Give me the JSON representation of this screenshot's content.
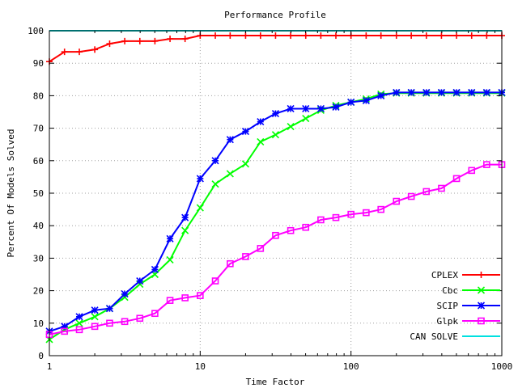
{
  "chart_data": {
    "type": "line",
    "title": "Performance Profile",
    "xlabel": "Time Factor",
    "ylabel": "Percent Of Models Solved",
    "x_scale": "log",
    "xlim": [
      1,
      1000
    ],
    "ylim": [
      0,
      100
    ],
    "grid": true,
    "legend_position": "bottom-right",
    "x_ticks": [
      {
        "value": 1,
        "label": "1"
      },
      {
        "value": 10,
        "label": "10"
      },
      {
        "value": 100,
        "label": "100"
      },
      {
        "value": 1000,
        "label": "1000"
      }
    ],
    "y_ticks": [
      0,
      10,
      20,
      30,
      40,
      50,
      60,
      70,
      80,
      90,
      100
    ],
    "series": [
      {
        "name": "CPLEX",
        "color": "#ff0000",
        "marker": "plus",
        "x": [
          1,
          1.26,
          1.58,
          2,
          2.51,
          3.16,
          3.98,
          5.01,
          6.31,
          7.94,
          10,
          12.6,
          15.8,
          20,
          25.1,
          31.6,
          39.8,
          50.1,
          63.1,
          79.4,
          100,
          126,
          158,
          200,
          251,
          316,
          398,
          501,
          631,
          794,
          1000
        ],
        "values": [
          90.5,
          93.5,
          93.5,
          94.2,
          96,
          96.8,
          96.8,
          96.8,
          97.5,
          97.5,
          98.5,
          98.5,
          98.5,
          98.5,
          98.5,
          98.5,
          98.5,
          98.5,
          98.5,
          98.5,
          98.5,
          98.5,
          98.5,
          98.5,
          98.5,
          98.5,
          98.5,
          98.5,
          98.5,
          98.5,
          98.5
        ]
      },
      {
        "name": "Cbc",
        "color": "#00ff00",
        "marker": "cross",
        "x": [
          1,
          1.26,
          1.58,
          2,
          2.51,
          3.16,
          3.98,
          5.01,
          6.31,
          7.94,
          10,
          12.6,
          15.8,
          20,
          25.1,
          31.6,
          39.8,
          50.1,
          63.1,
          79.4,
          100,
          126,
          158,
          200,
          251,
          316,
          398,
          501,
          631,
          794,
          1000
        ],
        "values": [
          5,
          8,
          10,
          12,
          14.5,
          18,
          22,
          25,
          29.5,
          38.5,
          45.5,
          52.8,
          56,
          59,
          65.8,
          68,
          70.5,
          73,
          75.5,
          77,
          78,
          79,
          80.5,
          80.8,
          80.8,
          80.8,
          80.8,
          80.8,
          80.8,
          80.8,
          80.8
        ]
      },
      {
        "name": "SCIP",
        "color": "#0000ff",
        "marker": "star",
        "x": [
          1,
          1.26,
          1.58,
          2,
          2.51,
          3.16,
          3.98,
          5.01,
          6.31,
          7.94,
          10,
          12.6,
          15.8,
          20,
          25.1,
          31.6,
          39.8,
          50.1,
          63.1,
          79.4,
          100,
          126,
          158,
          200,
          251,
          316,
          398,
          501,
          631,
          794,
          1000
        ],
        "values": [
          7.5,
          9,
          12,
          14,
          14.5,
          19,
          23,
          26.5,
          36,
          42.5,
          54.5,
          60,
          66.5,
          69,
          72,
          74.5,
          76,
          76,
          76,
          76.5,
          78,
          78.5,
          80,
          81,
          81,
          81,
          81,
          81,
          81,
          81,
          81
        ]
      },
      {
        "name": "Glpk",
        "color": "#ff00ff",
        "marker": "square",
        "x": [
          1,
          1.26,
          1.58,
          2,
          2.51,
          3.16,
          3.98,
          5.01,
          6.31,
          7.94,
          10,
          12.6,
          15.8,
          20,
          25.1,
          31.6,
          39.8,
          50.1,
          63.1,
          79.4,
          100,
          126,
          158,
          200,
          251,
          316,
          398,
          501,
          631,
          794,
          1000
        ],
        "values": [
          6.5,
          7.5,
          8,
          9,
          10,
          10.5,
          11.5,
          13,
          17,
          17.8,
          18.5,
          23,
          28.3,
          30.5,
          33,
          37,
          38.5,
          39.5,
          41.8,
          42.5,
          43.5,
          44,
          45,
          47.5,
          49,
          50.5,
          51.5,
          54.5,
          57,
          58.8,
          58.8
        ]
      },
      {
        "name": "CAN SOLVE",
        "color": "#00e0e0",
        "marker": "none",
        "x": [
          1,
          1000
        ],
        "values": [
          100,
          100
        ]
      }
    ]
  }
}
